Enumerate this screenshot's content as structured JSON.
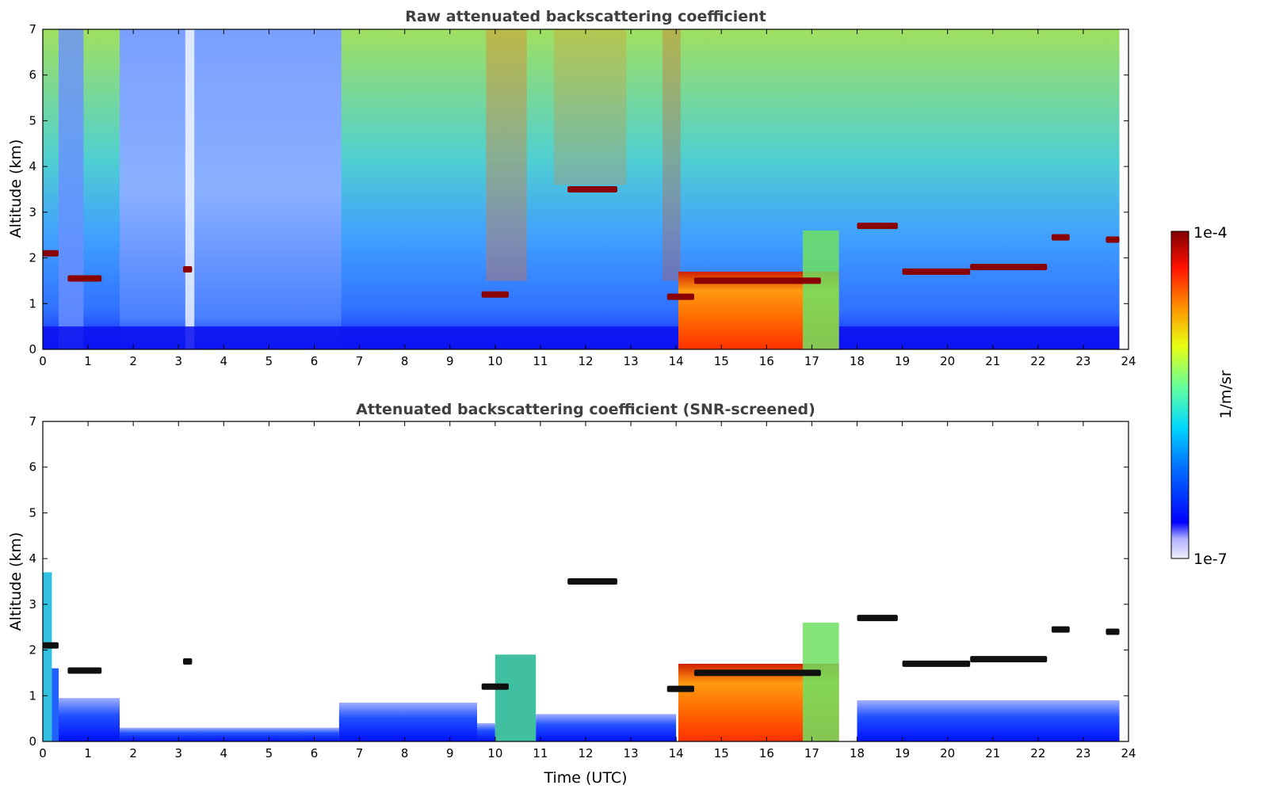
{
  "chart_data": [
    {
      "type": "heatmap",
      "title": "Raw attenuated backscattering coefficient",
      "xlabel": "",
      "ylabel": "Altitude (km)",
      "xlim": [
        0,
        24
      ],
      "ylim": [
        0,
        7
      ],
      "xticks": [
        "0",
        "1",
        "2",
        "3",
        "4",
        "5",
        "6",
        "7",
        "8",
        "9",
        "10",
        "11",
        "12",
        "13",
        "14",
        "15",
        "16",
        "17",
        "18",
        "19",
        "20",
        "21",
        "22",
        "23",
        "24"
      ],
      "yticks": [
        "0",
        "1",
        "2",
        "3",
        "4",
        "5",
        "6",
        "7"
      ],
      "screened": false,
      "cloud_layers": [
        {
          "t_start": 0.0,
          "t_end": 0.35,
          "alt_km": 2.1
        },
        {
          "t_start": 0.55,
          "t_end": 1.3,
          "alt_km": 1.55
        },
        {
          "t_start": 3.1,
          "t_end": 3.3,
          "alt_km": 1.75
        },
        {
          "t_start": 9.7,
          "t_end": 10.3,
          "alt_km": 1.2
        },
        {
          "t_start": 11.6,
          "t_end": 12.7,
          "alt_km": 3.5
        },
        {
          "t_start": 13.8,
          "t_end": 14.4,
          "alt_km": 1.15
        },
        {
          "t_start": 14.4,
          "t_end": 17.2,
          "alt_km": 1.5
        },
        {
          "t_start": 18.0,
          "t_end": 18.9,
          "alt_km": 2.7
        },
        {
          "t_start": 19.0,
          "t_end": 20.5,
          "alt_km": 1.7
        },
        {
          "t_start": 20.5,
          "t_end": 22.2,
          "alt_km": 1.8
        },
        {
          "t_start": 22.3,
          "t_end": 22.7,
          "alt_km": 2.45
        },
        {
          "t_start": 23.5,
          "t_end": 23.8,
          "alt_km": 2.4
        }
      ],
      "dense_aerosol": [
        {
          "t_start": 14.05,
          "t_end": 17.6,
          "top_km": 1.7
        }
      ]
    },
    {
      "type": "heatmap",
      "title": "Attenuated backscattering coefficient (SNR-screened)",
      "xlabel": "Time (UTC)",
      "ylabel": "Altitude (km)",
      "xlim": [
        0,
        24
      ],
      "ylim": [
        0,
        7
      ],
      "xticks": [
        "0",
        "1",
        "2",
        "3",
        "4",
        "5",
        "6",
        "7",
        "8",
        "9",
        "10",
        "11",
        "12",
        "13",
        "14",
        "15",
        "16",
        "17",
        "18",
        "19",
        "20",
        "21",
        "22",
        "23",
        "24"
      ],
      "yticks": [
        "0",
        "1",
        "2",
        "3",
        "4",
        "5",
        "6",
        "7"
      ],
      "screened": true
    }
  ],
  "colorbar": {
    "label": "1/m/sr",
    "max_label": "1e-4",
    "min_label": "1e-7",
    "colormap": "jet"
  }
}
